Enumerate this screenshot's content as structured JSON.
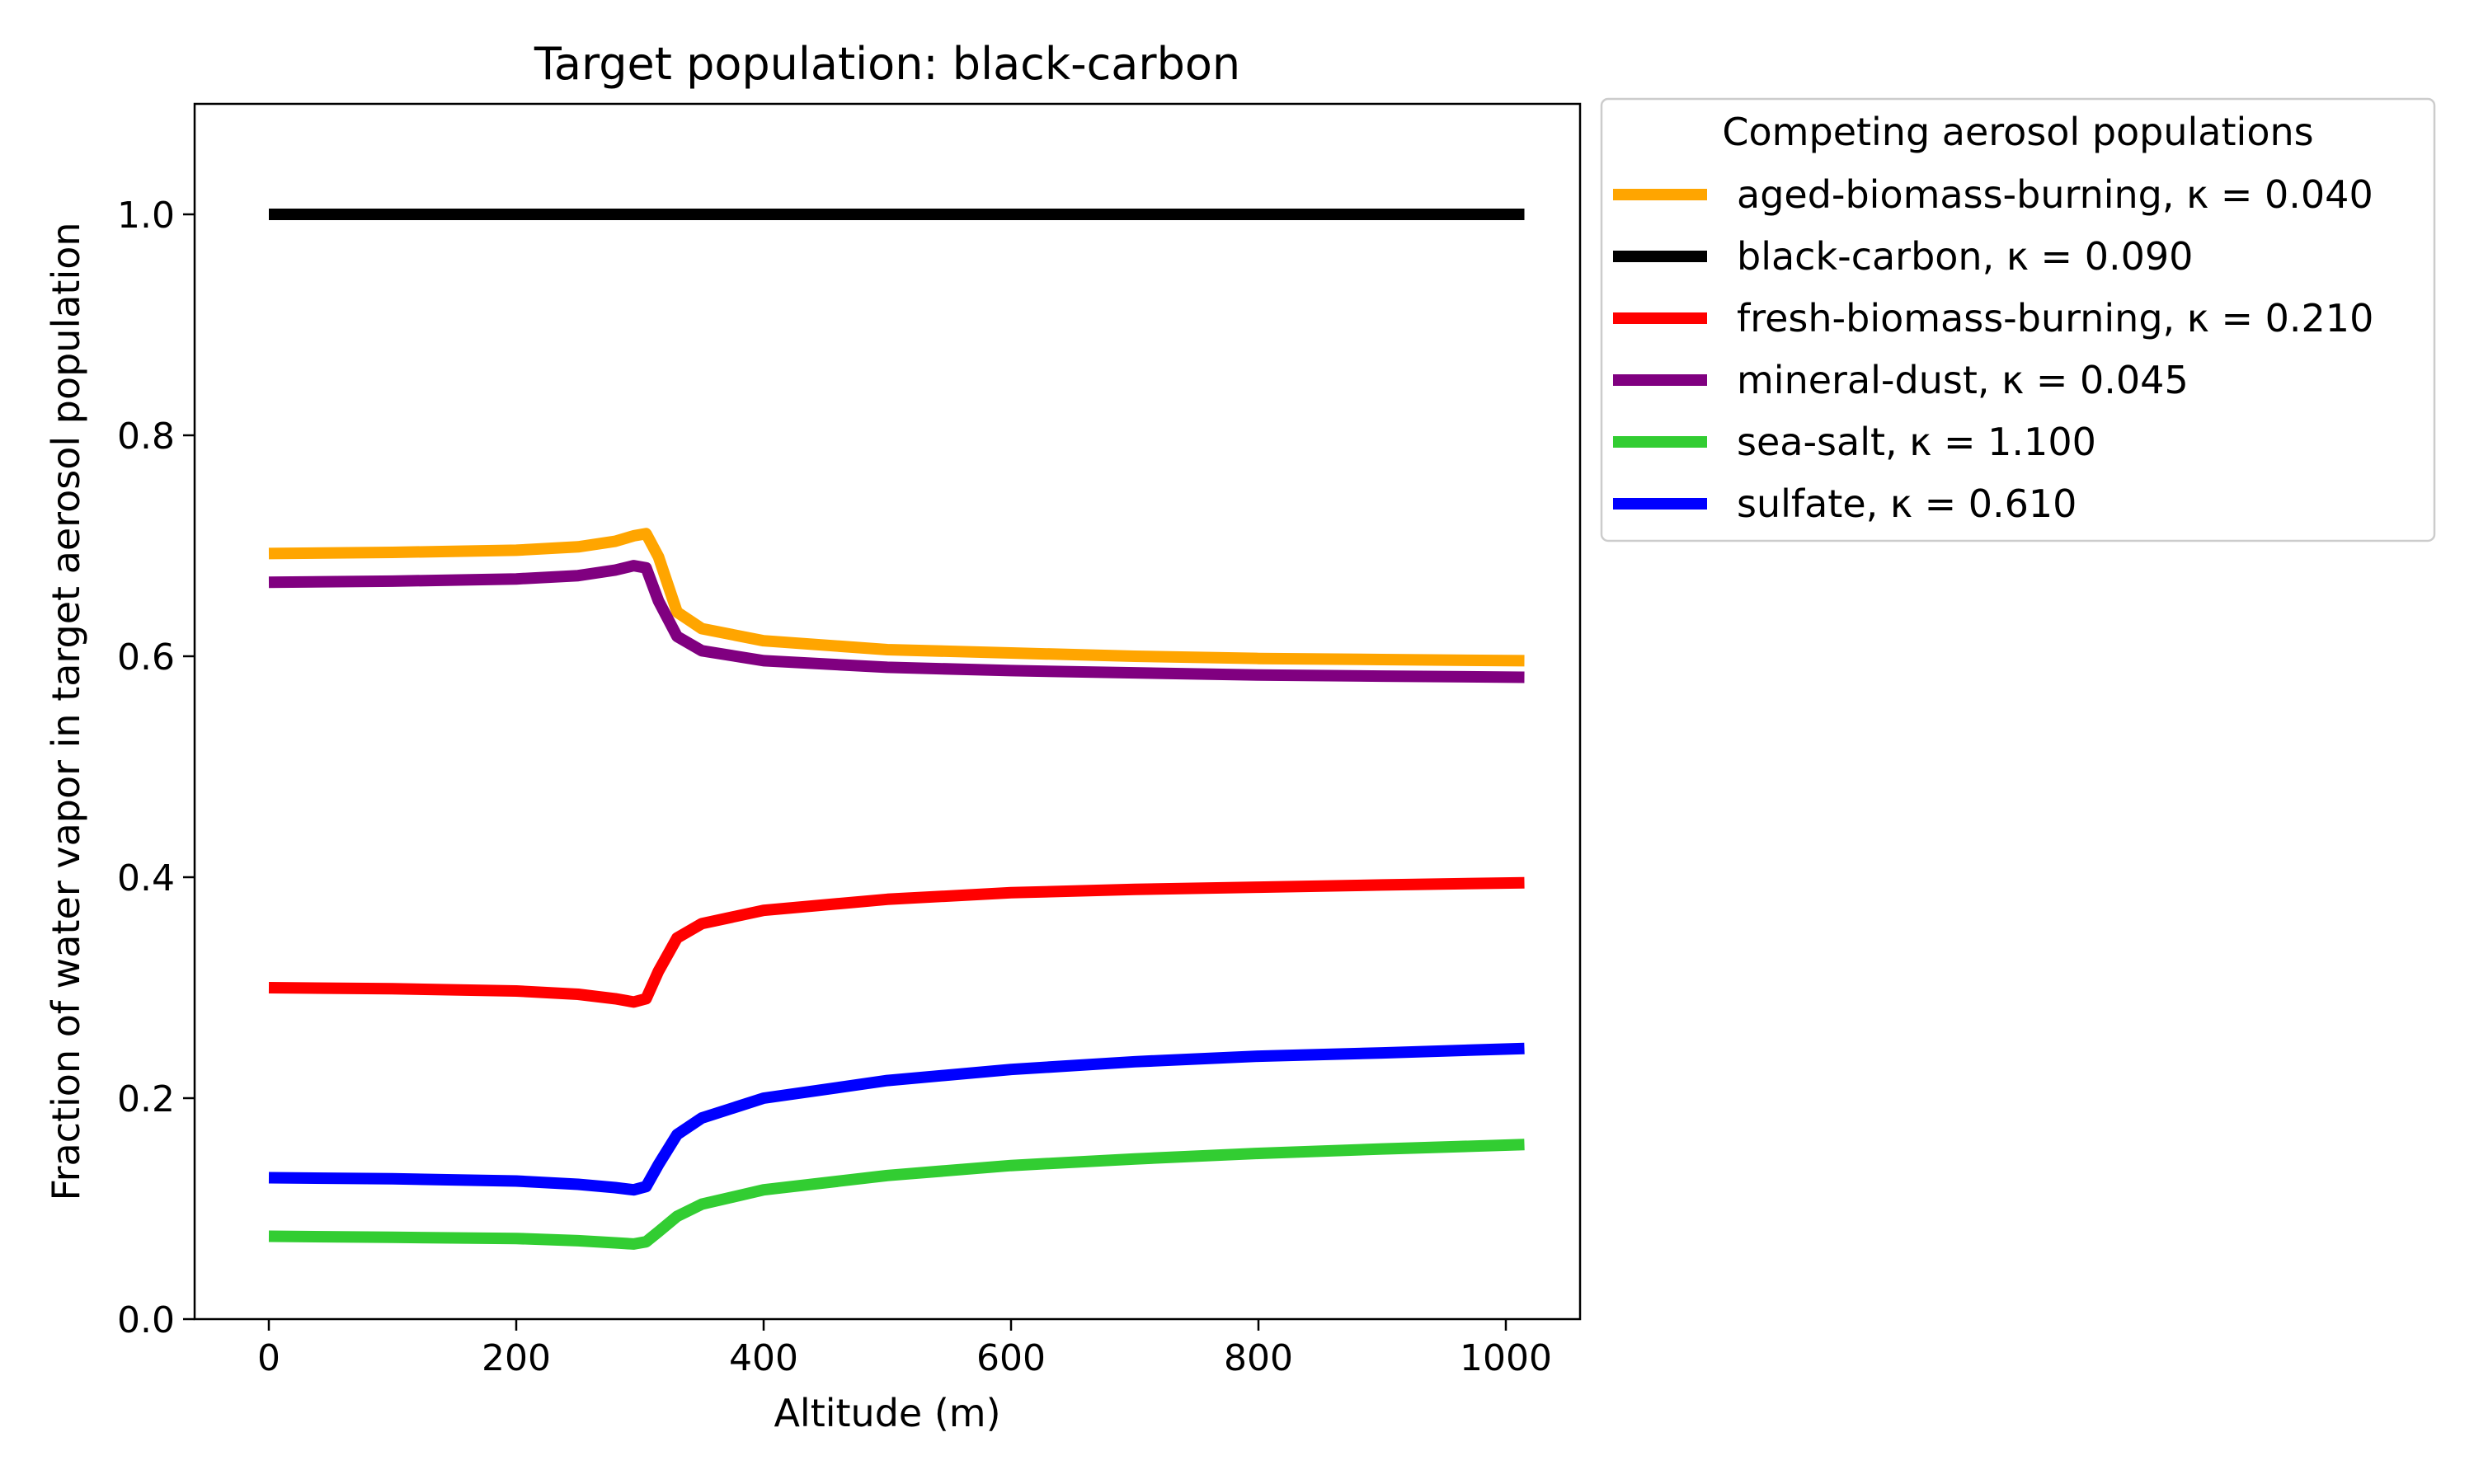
{
  "chart_data": {
    "type": "line",
    "title": "Target population: black-carbon",
    "xlabel": "Altitude (m)",
    "ylabel": "Fraction of water vapor in target aerosol population",
    "xlim": [
      -60,
      1060
    ],
    "ylim": [
      0.0,
      1.1
    ],
    "xticks": [
      0,
      200,
      400,
      600,
      800,
      1000
    ],
    "xtick_labels": [
      "0",
      "200",
      "400",
      "600",
      "800",
      "1000"
    ],
    "yticks": [
      0.0,
      0.2,
      0.4,
      0.6,
      0.8,
      1.0
    ],
    "ytick_labels": [
      "0.0",
      "0.2",
      "0.4",
      "0.6",
      "0.8",
      "1.0"
    ],
    "grid": false,
    "legend": {
      "title": "Competing aerosol populations",
      "placement": "outside upper right"
    },
    "x": [
      0,
      100,
      200,
      250,
      280,
      295,
      305,
      315,
      330,
      350,
      400,
      500,
      600,
      700,
      800,
      900,
      1015
    ],
    "series": [
      {
        "name": "aged-biomass-burning, κ = 0.040",
        "color": "#ffa500",
        "values": [
          0.693,
          0.694,
          0.696,
          0.699,
          0.704,
          0.709,
          0.711,
          0.69,
          0.64,
          0.625,
          0.614,
          0.606,
          0.603,
          0.6,
          0.598,
          0.597,
          0.596
        ]
      },
      {
        "name": "black-carbon, κ = 0.090",
        "color": "#000000",
        "values": [
          1.0,
          1.0,
          1.0,
          1.0,
          1.0,
          1.0,
          1.0,
          1.0,
          1.0,
          1.0,
          1.0,
          1.0,
          1.0,
          1.0,
          1.0,
          1.0,
          1.0
        ]
      },
      {
        "name": "fresh-biomass-burning, κ = 0.210",
        "color": "#ff0000",
        "values": [
          0.3,
          0.299,
          0.297,
          0.294,
          0.29,
          0.287,
          0.29,
          0.315,
          0.345,
          0.358,
          0.37,
          0.38,
          0.386,
          0.389,
          0.391,
          0.393,
          0.395
        ]
      },
      {
        "name": "mineral-dust, κ = 0.045",
        "color": "#800080",
        "values": [
          0.667,
          0.668,
          0.67,
          0.673,
          0.678,
          0.682,
          0.68,
          0.65,
          0.618,
          0.605,
          0.596,
          0.59,
          0.587,
          0.585,
          0.583,
          0.582,
          0.581
        ]
      },
      {
        "name": "sea-salt, κ = 1.100",
        "color": "#32cd32",
        "values": [
          0.075,
          0.074,
          0.073,
          0.071,
          0.069,
          0.068,
          0.07,
          0.079,
          0.093,
          0.104,
          0.117,
          0.13,
          0.139,
          0.145,
          0.15,
          0.154,
          0.158
        ]
      },
      {
        "name": "sulfate, κ = 0.610",
        "color": "#0000ff",
        "values": [
          0.128,
          0.127,
          0.125,
          0.122,
          0.119,
          0.117,
          0.12,
          0.14,
          0.167,
          0.182,
          0.2,
          0.216,
          0.226,
          0.233,
          0.238,
          0.241,
          0.245
        ]
      }
    ]
  }
}
